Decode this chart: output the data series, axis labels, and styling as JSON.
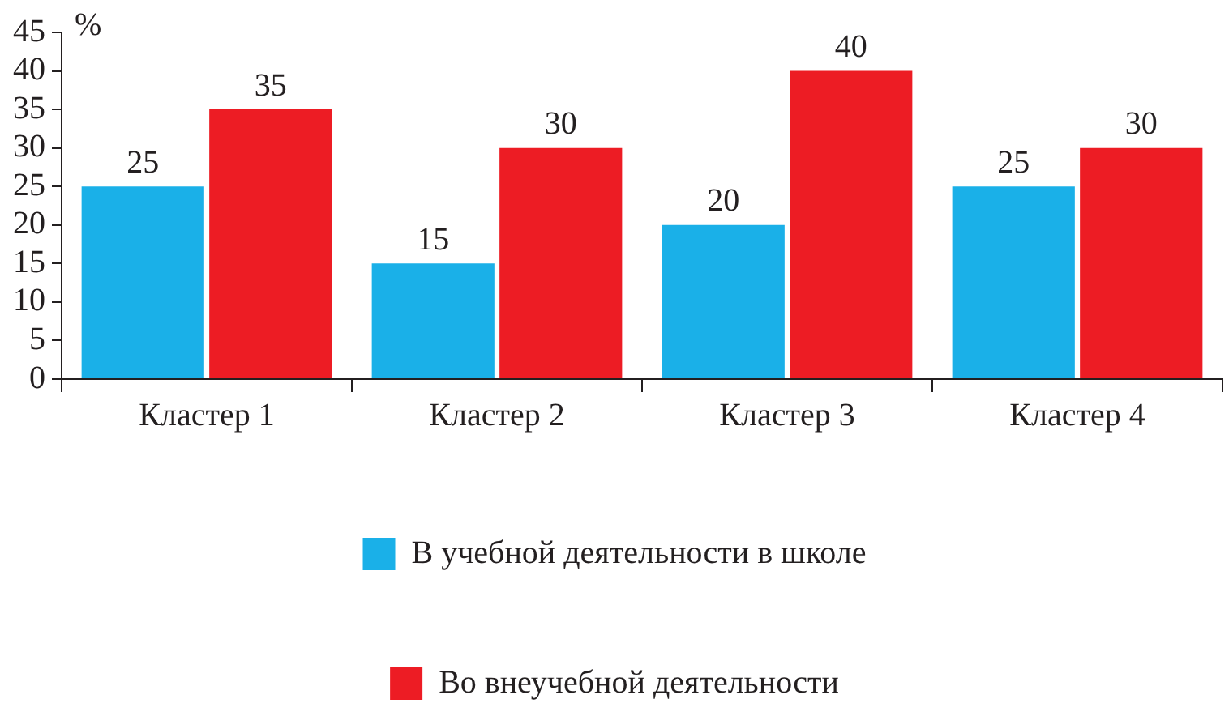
{
  "chart_data": {
    "type": "bar",
    "ylabel": "%",
    "categories": [
      "Кластер 1",
      "Кластер 2",
      "Кластер 3",
      "Кластер 4"
    ],
    "series": [
      {
        "name": "В учебной деятельности в школе",
        "color": "#1ab0e8",
        "values": [
          25,
          15,
          20,
          25
        ]
      },
      {
        "name": "Во внеучебной деятельности",
        "color": "#ed1c24",
        "values": [
          35,
          30,
          40,
          30
        ]
      }
    ],
    "ylim": [
      0,
      45
    ],
    "yticks": [
      0,
      5,
      10,
      15,
      20,
      25,
      30,
      35,
      40,
      45
    ],
    "grid": false,
    "legend": "bottom",
    "data_labels": true
  }
}
